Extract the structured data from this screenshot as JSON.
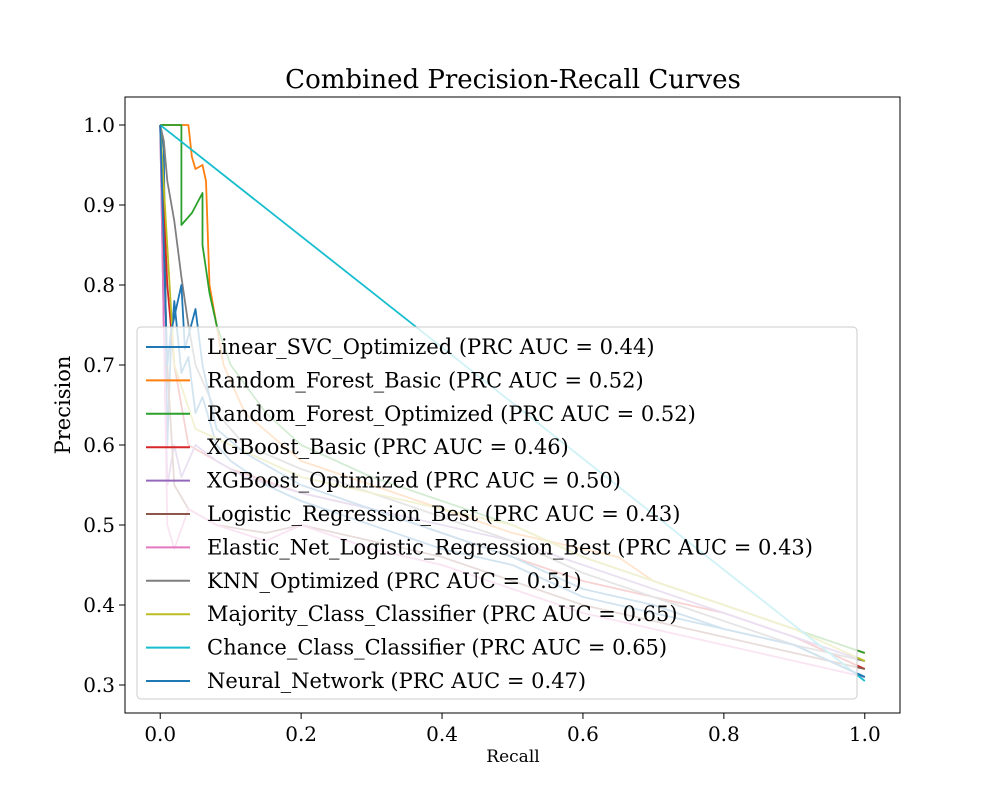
{
  "chart_data": {
    "type": "line",
    "title": "Combined Precision-Recall Curves",
    "xlabel": "Recall",
    "ylabel": "Precision",
    "xlim": [
      -0.05,
      1.05
    ],
    "ylim": [
      0.265,
      1.035
    ],
    "x_ticks": [
      0.0,
      0.2,
      0.4,
      0.6,
      0.8,
      1.0
    ],
    "x_tick_labels": [
      "0.0",
      "0.2",
      "0.4",
      "0.6",
      "0.8",
      "1.0"
    ],
    "y_ticks": [
      0.3,
      0.4,
      0.5,
      0.6,
      0.7,
      0.8,
      0.9,
      1.0
    ],
    "y_tick_labels": [
      "0.3",
      "0.4",
      "0.5",
      "0.6",
      "0.7",
      "0.8",
      "0.9",
      "1.0"
    ],
    "grid": false,
    "legend_position": "lower-left",
    "series": [
      {
        "label": "Linear_SVC_Optimized (PRC AUC = 0.44)",
        "color": "#1f77b4",
        "points": [
          [
            0.0,
            1.0
          ],
          [
            0.005,
            0.97
          ],
          [
            0.01,
            0.6
          ],
          [
            0.015,
            0.72
          ],
          [
            0.02,
            0.78
          ],
          [
            0.03,
            0.69
          ],
          [
            0.04,
            0.71
          ],
          [
            0.05,
            0.64
          ],
          [
            0.06,
            0.66
          ],
          [
            0.08,
            0.6
          ],
          [
            0.1,
            0.58
          ],
          [
            0.15,
            0.55
          ],
          [
            0.2,
            0.53
          ],
          [
            0.3,
            0.5
          ],
          [
            0.4,
            0.47
          ],
          [
            0.5,
            0.45
          ],
          [
            0.6,
            0.41
          ],
          [
            0.7,
            0.39
          ],
          [
            0.8,
            0.37
          ],
          [
            0.9,
            0.35
          ],
          [
            1.0,
            0.31
          ]
        ]
      },
      {
        "label": "Random_Forest_Basic (PRC AUC = 0.52)",
        "color": "#ff7f0e",
        "points": [
          [
            0.0,
            1.0
          ],
          [
            0.04,
            1.0
          ],
          [
            0.045,
            0.96
          ],
          [
            0.05,
            0.945
          ],
          [
            0.06,
            0.95
          ],
          [
            0.065,
            0.93
          ],
          [
            0.07,
            0.8
          ],
          [
            0.09,
            0.7
          ],
          [
            0.12,
            0.64
          ],
          [
            0.2,
            0.58
          ],
          [
            0.3,
            0.55
          ],
          [
            0.4,
            0.52
          ],
          [
            0.5,
            0.49
          ],
          [
            0.6,
            0.47
          ],
          [
            0.65,
            0.46
          ],
          [
            0.7,
            0.43
          ],
          [
            0.8,
            0.4
          ],
          [
            0.9,
            0.37
          ],
          [
            1.0,
            0.34
          ]
        ]
      },
      {
        "label": "Random_Forest_Optimized (PRC AUC = 0.52)",
        "color": "#2ca02c",
        "points": [
          [
            0.0,
            1.0
          ],
          [
            0.03,
            1.0
          ],
          [
            0.03,
            0.875
          ],
          [
            0.045,
            0.89
          ],
          [
            0.06,
            0.915
          ],
          [
            0.06,
            0.85
          ],
          [
            0.065,
            0.82
          ],
          [
            0.07,
            0.79
          ],
          [
            0.08,
            0.75
          ],
          [
            0.1,
            0.7
          ],
          [
            0.15,
            0.64
          ],
          [
            0.2,
            0.6
          ],
          [
            0.3,
            0.56
          ],
          [
            0.4,
            0.53
          ],
          [
            0.5,
            0.5
          ],
          [
            0.6,
            0.46
          ],
          [
            0.7,
            0.43
          ],
          [
            0.8,
            0.4
          ],
          [
            0.9,
            0.37
          ],
          [
            1.0,
            0.34
          ]
        ]
      },
      {
        "label": "XGBoost_Basic (PRC AUC = 0.46)",
        "color": "#d62728",
        "points": [
          [
            0.0,
            1.0
          ],
          [
            0.01,
            0.8
          ],
          [
            0.02,
            0.7
          ],
          [
            0.04,
            0.6
          ],
          [
            0.06,
            0.59
          ],
          [
            0.1,
            0.57
          ],
          [
            0.2,
            0.54
          ],
          [
            0.3,
            0.52
          ],
          [
            0.4,
            0.49
          ],
          [
            0.5,
            0.46
          ],
          [
            0.6,
            0.43
          ],
          [
            0.7,
            0.41
          ],
          [
            0.8,
            0.39
          ],
          [
            0.9,
            0.36
          ],
          [
            1.0,
            0.32
          ]
        ]
      },
      {
        "label": "XGBoost_Optimized (PRC AUC = 0.50)",
        "color": "#9467bd",
        "points": [
          [
            0.0,
            1.0
          ],
          [
            0.005,
            0.75
          ],
          [
            0.01,
            0.55
          ],
          [
            0.02,
            0.6
          ],
          [
            0.03,
            0.56
          ],
          [
            0.05,
            0.6
          ],
          [
            0.08,
            0.58
          ],
          [
            0.12,
            0.56
          ],
          [
            0.2,
            0.54
          ],
          [
            0.3,
            0.52
          ],
          [
            0.4,
            0.5
          ],
          [
            0.5,
            0.48
          ],
          [
            0.6,
            0.45
          ],
          [
            0.7,
            0.42
          ],
          [
            0.8,
            0.39
          ],
          [
            0.9,
            0.36
          ],
          [
            1.0,
            0.33
          ]
        ]
      },
      {
        "label": "Logistic_Regression_Best (PRC AUC = 0.43)",
        "color": "#8c564b",
        "points": [
          [
            0.0,
            1.0
          ],
          [
            0.01,
            0.7
          ],
          [
            0.02,
            0.55
          ],
          [
            0.04,
            0.52
          ],
          [
            0.08,
            0.5
          ],
          [
            0.15,
            0.49
          ],
          [
            0.2,
            0.5
          ],
          [
            0.3,
            0.48
          ],
          [
            0.4,
            0.46
          ],
          [
            0.5,
            0.43
          ],
          [
            0.6,
            0.4
          ],
          [
            0.7,
            0.38
          ],
          [
            0.8,
            0.36
          ],
          [
            0.9,
            0.34
          ],
          [
            1.0,
            0.32
          ]
        ]
      },
      {
        "label": "Elastic_Net_Logistic_Regression_Best (PRC AUC = 0.43)",
        "color": "#e377c2",
        "points": [
          [
            0.0,
            1.0
          ],
          [
            0.01,
            0.5
          ],
          [
            0.02,
            0.47
          ],
          [
            0.04,
            0.52
          ],
          [
            0.08,
            0.5
          ],
          [
            0.15,
            0.48
          ],
          [
            0.2,
            0.5
          ],
          [
            0.3,
            0.47
          ],
          [
            0.4,
            0.45
          ],
          [
            0.5,
            0.42
          ],
          [
            0.6,
            0.39
          ],
          [
            0.7,
            0.37
          ],
          [
            0.8,
            0.35
          ],
          [
            0.9,
            0.33
          ],
          [
            1.0,
            0.31
          ]
        ]
      },
      {
        "label": "KNN_Optimized (PRC AUC = 0.51)",
        "color": "#7f7f7f",
        "points": [
          [
            0.0,
            1.0
          ],
          [
            0.005,
            0.98
          ],
          [
            0.01,
            0.93
          ],
          [
            0.02,
            0.88
          ],
          [
            0.03,
            0.81
          ],
          [
            0.04,
            0.75
          ],
          [
            0.05,
            0.7
          ],
          [
            0.08,
            0.64
          ],
          [
            0.12,
            0.6
          ],
          [
            0.2,
            0.57
          ],
          [
            0.3,
            0.54
          ],
          [
            0.4,
            0.51
          ],
          [
            0.5,
            0.48
          ],
          [
            0.6,
            0.44
          ],
          [
            0.7,
            0.41
          ],
          [
            0.8,
            0.38
          ],
          [
            0.9,
            0.35
          ],
          [
            1.0,
            0.33
          ]
        ]
      },
      {
        "label": "Majority_Class_Classifier (PRC AUC = 0.65)",
        "color": "#bcbd22",
        "points": [
          [
            0.0,
            1.0
          ],
          [
            0.02,
            0.7
          ],
          [
            0.05,
            0.62
          ],
          [
            0.1,
            0.6
          ],
          [
            0.2,
            0.56
          ],
          [
            0.3,
            0.54
          ],
          [
            0.4,
            0.52
          ],
          [
            0.5,
            0.5
          ],
          [
            0.6,
            0.46
          ],
          [
            0.7,
            0.43
          ],
          [
            0.8,
            0.4
          ],
          [
            0.9,
            0.37
          ],
          [
            1.0,
            0.33
          ]
        ]
      },
      {
        "label": "Chance_Class_Classifier (PRC AUC = 0.65)",
        "color": "#17becf",
        "points": [
          [
            0.0,
            1.0
          ],
          [
            1.0,
            0.305
          ]
        ]
      },
      {
        "label": "Neural_Network (PRC AUC = 0.47)",
        "color": "#1f77b4",
        "points": [
          [
            0.0,
            1.0
          ],
          [
            0.01,
            0.7
          ],
          [
            0.015,
            0.74
          ],
          [
            0.02,
            0.76
          ],
          [
            0.03,
            0.8
          ],
          [
            0.035,
            0.72
          ],
          [
            0.05,
            0.77
          ],
          [
            0.06,
            0.7
          ],
          [
            0.08,
            0.62
          ],
          [
            0.12,
            0.59
          ],
          [
            0.2,
            0.55
          ],
          [
            0.3,
            0.52
          ],
          [
            0.4,
            0.49
          ],
          [
            0.5,
            0.46
          ],
          [
            0.6,
            0.42
          ],
          [
            0.7,
            0.4
          ],
          [
            0.8,
            0.37
          ],
          [
            0.9,
            0.35
          ],
          [
            1.0,
            0.31
          ]
        ]
      }
    ]
  }
}
